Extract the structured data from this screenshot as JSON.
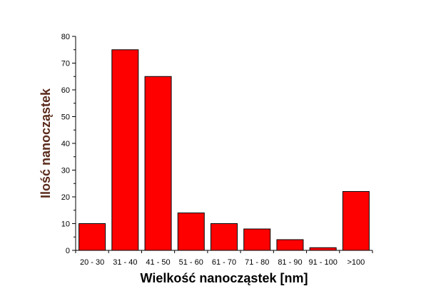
{
  "colors": {
    "bar_fill": "#ff0000",
    "bar_stroke": "#000000",
    "axis": "#000000",
    "ylabel_color": "#5a2a1a",
    "xlabel_color": "#000000"
  },
  "chart_data": {
    "type": "bar",
    "title": "",
    "xlabel": "Wielkość nanocząstek [nm]",
    "ylabel": "Ilość nanocząstek",
    "categories": [
      "20 - 30",
      "31 - 40",
      "41 - 50",
      "51 - 60",
      "61 - 70",
      "71 - 80",
      "81 - 90",
      "91 - 100",
      ">100"
    ],
    "values": [
      10,
      75,
      65,
      14,
      10,
      8,
      4,
      1,
      22
    ],
    "ylim": [
      0,
      80
    ],
    "yticks": [
      0,
      10,
      20,
      30,
      40,
      50,
      60,
      70,
      80
    ],
    "grid": false,
    "legend": "none"
  }
}
